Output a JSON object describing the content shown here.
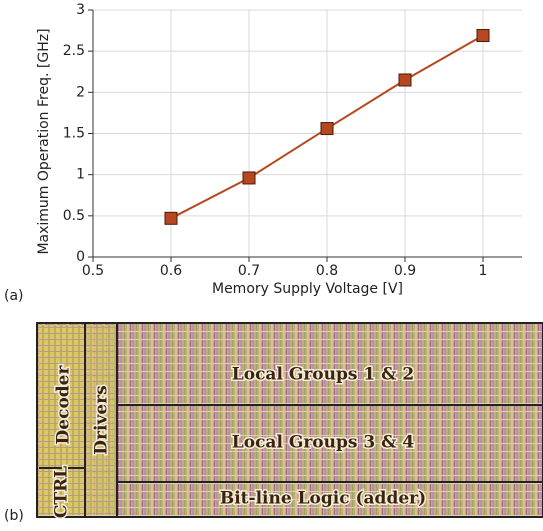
{
  "chart_data": {
    "type": "line",
    "x_label": "Memory Supply Voltage [V]",
    "y_label": "Maximum Operation Freq. [GHz]",
    "x": [
      0.6,
      0.7,
      0.8,
      0.9,
      1
    ],
    "series": [
      {
        "color": "#b5481e",
        "values": [
          0.47,
          0.96,
          1.56,
          2.15,
          2.69
        ]
      }
    ],
    "xlim": [
      0.5,
      1.05
    ],
    "xticks": [
      0.5,
      0.6,
      0.7,
      0.8,
      0.9,
      1
    ],
    "ylim": [
      0,
      3
    ],
    "yticks": [
      0,
      0.5,
      1,
      1.5,
      2,
      2.5,
      3
    ],
    "grid": true
  },
  "panel_labels": [
    "(a)",
    "(b)"
  ],
  "layout": {
    "decoder": "Decoder",
    "drivers": "Drivers",
    "ctrl": "CTRL",
    "groups_1_2": "Local Groups 1 & 2",
    "groups_3_4": "Local Groups 3 & 4",
    "bitline": "Bit-line Logic (adder)"
  }
}
